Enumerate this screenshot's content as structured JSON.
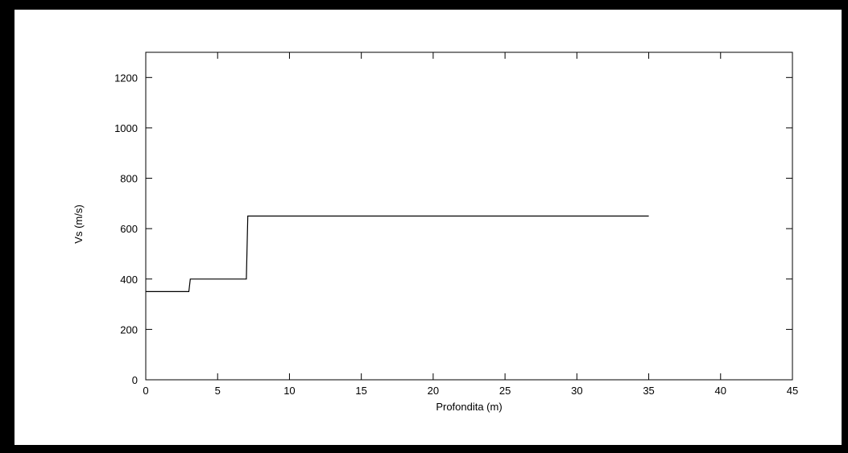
{
  "chart_data": {
    "type": "line",
    "title": "",
    "xlabel": "Profondita (m)",
    "ylabel": "Vs (m/s)",
    "xlim": [
      0,
      45
    ],
    "ylim": [
      0,
      1300
    ],
    "xticks": [
      0,
      5,
      10,
      15,
      20,
      25,
      30,
      35,
      40,
      45
    ],
    "yticks": [
      0,
      200,
      400,
      600,
      800,
      1000,
      1200
    ],
    "grid": false,
    "legend": "none",
    "series": [
      {
        "x": [
          0,
          3,
          3.1,
          7,
          7.1,
          35
        ],
        "y": [
          350,
          350,
          400,
          400,
          650,
          650
        ]
      }
    ],
    "colors": {
      "background": "#000000",
      "plot_background": "#ffffff",
      "line": "#000000"
    }
  }
}
